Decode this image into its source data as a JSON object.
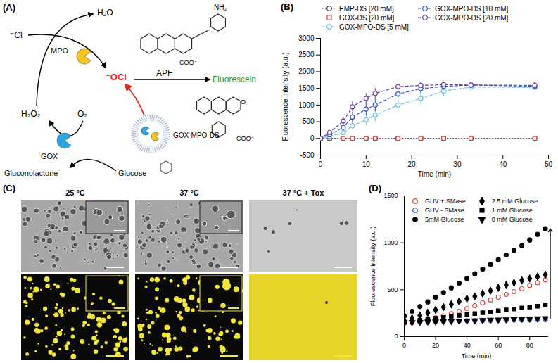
{
  "diagram": {
    "panel_label": "(A)",
    "labels": {
      "cl": "⁻Cl",
      "h2o": "H₂O",
      "mpo": "MPO",
      "ocl": "⁻OCl",
      "apf": "APF",
      "fluorescein": "Fluorescein",
      "nh2": "NH₂",
      "apf_coo": "COO⁻",
      "fl_coo": "COO⁻",
      "fl_o": "O⁻",
      "h2o2": "H₂O₂",
      "o2": "O₂",
      "gox": "GOX",
      "gluconolactone": "Gluconolactone",
      "glucose": "Glucose",
      "liposome": "GOX-MPO-DS"
    }
  },
  "images": {
    "panel_label": "(C)",
    "columns": [
      "25 °C",
      "37 °C",
      "37 °C + Tox"
    ]
  },
  "chart_data": [
    {
      "panel_label": "(B)",
      "type": "line",
      "x_label": "Time (min)",
      "y_label": "Fluorescence Intensity (a.u.)",
      "x": [
        0,
        2,
        5,
        7,
        10,
        12,
        17,
        22,
        27,
        33,
        47
      ],
      "xlim": [
        0,
        50
      ],
      "xticks": [
        0,
        10,
        20,
        30,
        40,
        50
      ],
      "ylim": [
        -500,
        3000
      ],
      "yticks": [
        -500,
        0,
        500,
        1000,
        1500,
        2000,
        2500,
        3000
      ],
      "legend": "top",
      "series": [
        {
          "name": "EMP-DS [20 mM]",
          "color": "#3a3a3a",
          "marker": "open-circle",
          "line_style": "dotted",
          "values": [
            0,
            0,
            0,
            0,
            0,
            0,
            0,
            0,
            0,
            0,
            0
          ],
          "errors": [
            0,
            20,
            20,
            20,
            20,
            20,
            20,
            20,
            20,
            20,
            20
          ]
        },
        {
          "name": "GOX-DS [20 mM]",
          "color": "#e0413a",
          "marker": "open-square",
          "line_style": "none",
          "values": [
            0,
            0,
            0,
            0,
            0,
            0,
            0,
            0,
            0,
            0,
            0
          ],
          "errors": [
            0,
            20,
            20,
            20,
            20,
            20,
            20,
            20,
            20,
            20,
            20
          ]
        },
        {
          "name": "GOX-MPO-DS [5 mM]",
          "color": "#62c3ea",
          "marker": "open-circle",
          "line_style": "dashed",
          "values": [
            0,
            60,
            170,
            380,
            560,
            700,
            1000,
            1200,
            1420,
            1540,
            1530
          ],
          "errors": [
            0,
            30,
            60,
            120,
            180,
            200,
            220,
            200,
            150,
            120,
            100
          ]
        },
        {
          "name": "GOX-MPO-DS [10 mM]",
          "color": "#3556c8",
          "marker": "open-circle",
          "line_style": "dashed",
          "values": [
            0,
            110,
            330,
            640,
            880,
            1000,
            1330,
            1490,
            1560,
            1600,
            1560
          ],
          "errors": [
            0,
            40,
            90,
            150,
            200,
            200,
            180,
            150,
            120,
            100,
            100
          ]
        },
        {
          "name": "GOX-MPO-DS [20 mM]",
          "color": "#6b3fa0",
          "marker": "open-circle",
          "line_style": "dashed",
          "values": [
            0,
            180,
            520,
            950,
            1200,
            1350,
            1550,
            1590,
            1610,
            1600,
            1590
          ],
          "errors": [
            0,
            50,
            100,
            150,
            150,
            150,
            100,
            80,
            80,
            80,
            80
          ]
        }
      ]
    },
    {
      "panel_label": "(D)",
      "type": "scatter",
      "x_label": "Time (min)",
      "y_label": "Fluorescence Intensity (a.u.)",
      "x": [
        0,
        5,
        10,
        15,
        20,
        25,
        30,
        35,
        40,
        45,
        50,
        55,
        60,
        65,
        70,
        75,
        80,
        85,
        90
      ],
      "xlim": [
        0,
        92
      ],
      "xticks": [
        0,
        20,
        40,
        60,
        80
      ],
      "ylim": [
        0,
        1500
      ],
      "yticks": [
        0,
        500,
        1000,
        1500
      ],
      "legend": "top-left",
      "series": [
        {
          "name": "GUV + SMase",
          "color": "#e0413a",
          "marker": "open-circle",
          "line_style": "none",
          "values": [
            140,
            150,
            165,
            180,
            200,
            220,
            245,
            270,
            300,
            330,
            360,
            390,
            420,
            450,
            480,
            510,
            545,
            575,
            605
          ]
        },
        {
          "name": "GUV - SMase",
          "color": "#3556c8",
          "marker": "open-circle",
          "line_style": "none",
          "values": [
            150,
            155,
            158,
            160,
            163,
            165,
            167,
            168,
            170,
            172,
            173,
            175,
            176,
            177,
            178,
            179,
            180,
            181,
            182
          ]
        },
        {
          "name": "5mM Glucose",
          "color": "#000000",
          "marker": "circle",
          "line_style": "none",
          "values": [
            220,
            270,
            320,
            370,
            420,
            470,
            520,
            570,
            620,
            670,
            720,
            770,
            820,
            870,
            920,
            970,
            1030,
            1090,
            1150
          ]
        },
        {
          "name": "2.5 mM Glucose",
          "color": "#000000",
          "marker": "diamond",
          "line_style": "none",
          "values": [
            170,
            195,
            225,
            255,
            285,
            315,
            345,
            375,
            405,
            430,
            460,
            490,
            520,
            550,
            575,
            600,
            620,
            640,
            660
          ]
        },
        {
          "name": "1 mM Glucose",
          "color": "#000000",
          "marker": "square",
          "line_style": "none",
          "values": [
            155,
            165,
            175,
            185,
            195,
            205,
            215,
            225,
            235,
            245,
            255,
            265,
            275,
            285,
            295,
            305,
            315,
            325,
            335
          ]
        },
        {
          "name": "0 mM Glucose",
          "color": "#000000",
          "marker": "triangle-down",
          "line_style": "none",
          "values": [
            150,
            152,
            155,
            158,
            160,
            163,
            165,
            168,
            170,
            172,
            175,
            178,
            180,
            183,
            185,
            188,
            190,
            193,
            195
          ]
        }
      ]
    }
  ]
}
